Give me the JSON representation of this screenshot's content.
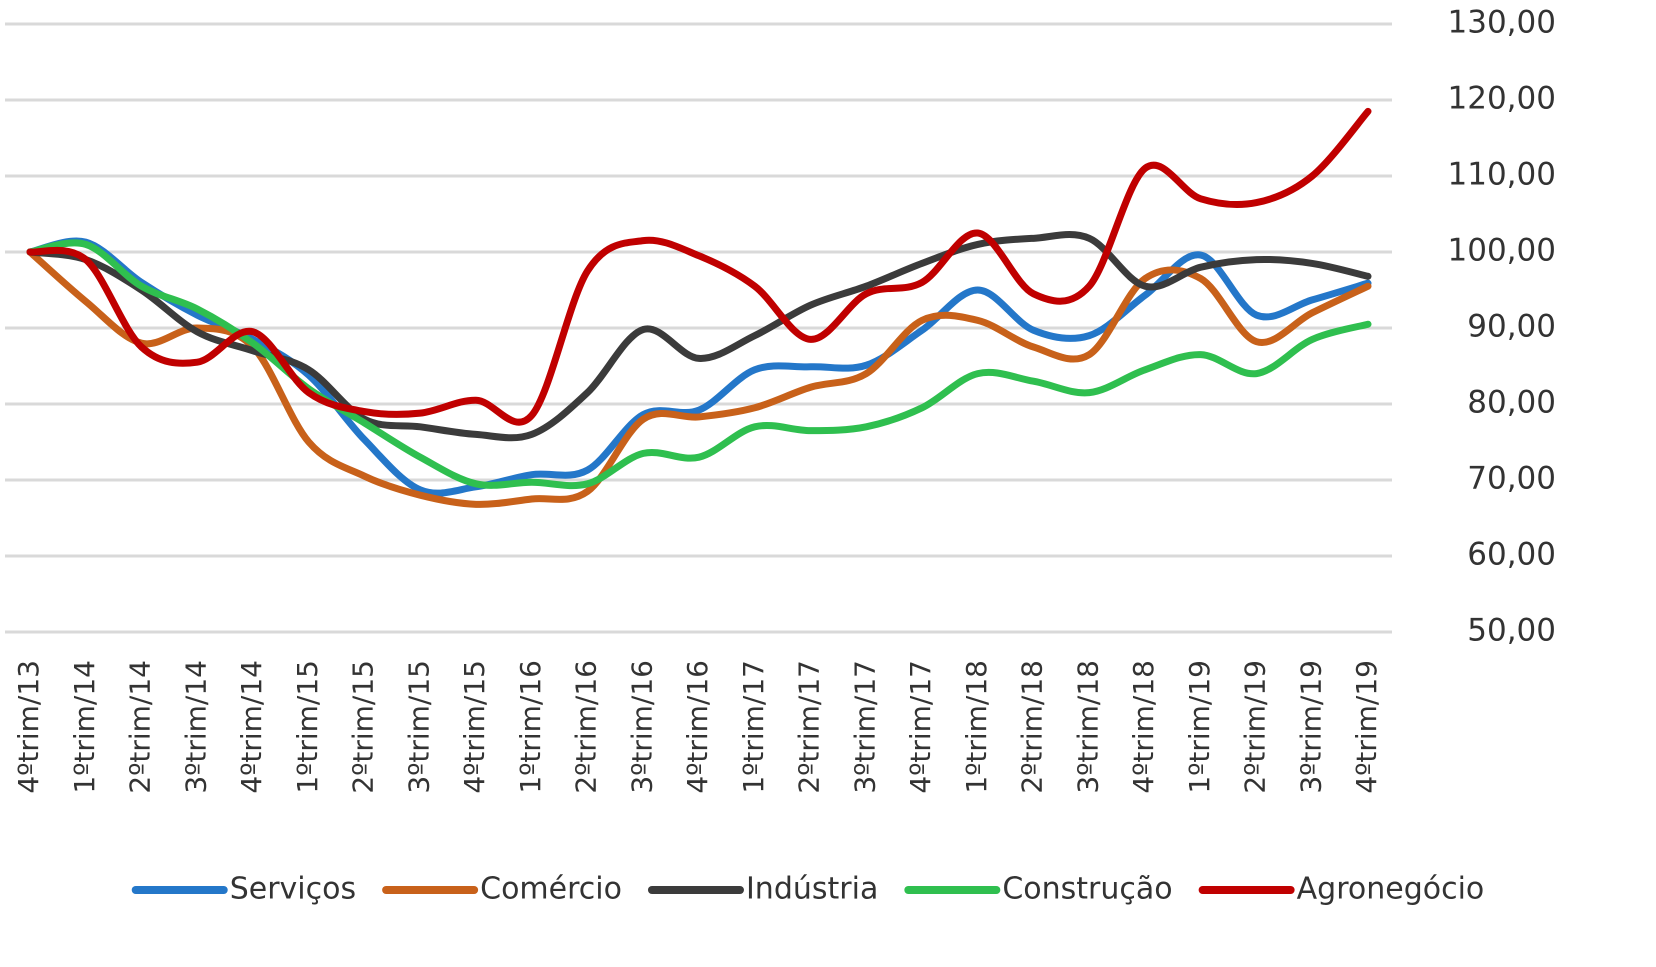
{
  "chart_data": {
    "type": "line",
    "categories": [
      "4ºtrim/13",
      "1ºtrim/14",
      "2ºtrim/14",
      "3ºtrim/14",
      "4ºtrim/14",
      "1ºtrim/15",
      "2ºtrim/15",
      "3ºtrim/15",
      "4ºtrim/15",
      "1ºtrim/16",
      "2ºtrim/16",
      "3ºtrim/16",
      "4ºtrim/16",
      "1ºtrim/17",
      "2ºtrim/17",
      "3ºtrim/17",
      "4ºtrim/17",
      "1ºtrim/18",
      "2ºtrim/18",
      "3ºtrim/18",
      "4ºtrim/18",
      "1ºtrim/19",
      "2ºtrim/19",
      "3ºtrim/19",
      "4ºtrim/19"
    ],
    "series": [
      {
        "name": "Serviços",
        "color": "#2477c9",
        "values": [
          100,
          101.3,
          96,
          91.7,
          88.5,
          83.8,
          75.3,
          68.7,
          69.1,
          70.7,
          71.3,
          78.6,
          79.2,
          84.5,
          84.9,
          85.1,
          89.7,
          95,
          89.7,
          89,
          94.3,
          99.6,
          91.7,
          93.7,
          95.9
        ]
      },
      {
        "name": "Comércio",
        "color": "#c8611a",
        "values": [
          100,
          93.5,
          88,
          90,
          87.5,
          75,
          70.5,
          68,
          66.8,
          67.5,
          68.5,
          78,
          78.3,
          79.5,
          82.2,
          84,
          91,
          91,
          87.5,
          86.5,
          96.5,
          96.5,
          88.2,
          92,
          95.5
        ]
      },
      {
        "name": "Indústria",
        "color": "#3b3b3b",
        "values": [
          100,
          99,
          95,
          89.5,
          87,
          84.5,
          78,
          77,
          76,
          76,
          81.5,
          89.8,
          86,
          89,
          93,
          95.5,
          98.5,
          101,
          101.8,
          101.8,
          95.5,
          98,
          99,
          98.5,
          96.8
        ]
      },
      {
        "name": "Construção",
        "color": "#2fbf4f",
        "values": [
          100,
          101,
          95.5,
          92.5,
          88,
          82,
          77.5,
          73,
          69.5,
          69.7,
          69.5,
          73.5,
          73,
          77,
          76.5,
          77,
          79.5,
          84,
          83,
          81.5,
          84.5,
          86.5,
          84,
          88.5,
          90.5
        ]
      },
      {
        "name": "Agronegócio",
        "color": "#c00000",
        "values": [
          100,
          99,
          87.5,
          85.5,
          89.5,
          81.5,
          79,
          78.8,
          80.5,
          78.5,
          97.5,
          101.5,
          99.5,
          95.5,
          88.5,
          94.5,
          96,
          102.5,
          94.5,
          95.5,
          111,
          107,
          106.5,
          110,
          118.5
        ]
      }
    ],
    "ylim": [
      50,
      130
    ],
    "yticks": [
      {
        "value": 50,
        "label": "50,00"
      },
      {
        "value": 60,
        "label": "60,00"
      },
      {
        "value": 70,
        "label": "70,00"
      },
      {
        "value": 80,
        "label": "80,00"
      },
      {
        "value": 90,
        "label": "90,00"
      },
      {
        "value": 100,
        "label": "100,00"
      },
      {
        "value": 110,
        "label": "110,00"
      },
      {
        "value": 120,
        "label": "120,00"
      },
      {
        "value": 130,
        "label": "130,00"
      }
    ],
    "grid": true,
    "legend": "bottom"
  }
}
